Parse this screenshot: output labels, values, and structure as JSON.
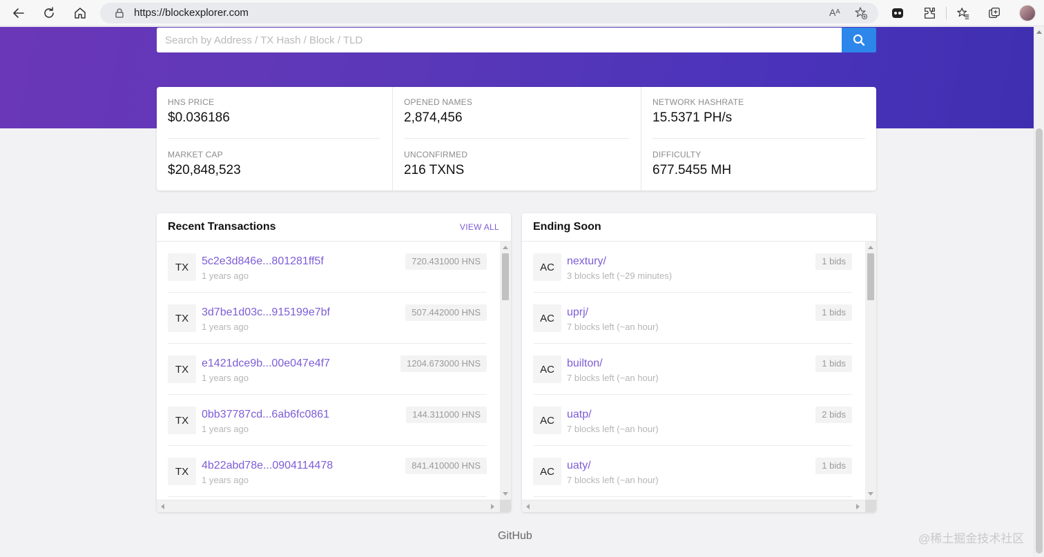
{
  "browser": {
    "url": "https://blockexplorer.com",
    "reader_label": "Aᴬ"
  },
  "search": {
    "placeholder": "Search by Address / TX Hash / Block / TLD"
  },
  "stats": {
    "hns_price": {
      "label": "HNS PRICE",
      "value": "$0.036186"
    },
    "market_cap": {
      "label": "MARKET CAP",
      "value": "$20,848,523"
    },
    "opened_names": {
      "label": "OPENED NAMES",
      "value": "2,874,456"
    },
    "unconfirmed": {
      "label": "UNCONFIRMED",
      "value": "216 TXNS"
    },
    "network_hashrate": {
      "label": "NETWORK HASHRATE",
      "value": "15.5371 PH/s"
    },
    "difficulty": {
      "label": "DIFFICULTY",
      "value": "677.5455 MH"
    }
  },
  "recent_transactions": {
    "title": "Recent Transactions",
    "view_all": "VIEW ALL",
    "items": [
      {
        "badge": "TX",
        "hash": "5c2e3d846e...801281ff5f",
        "time": "1 years ago",
        "amount": "720.431000 HNS"
      },
      {
        "badge": "TX",
        "hash": "3d7be1d03c...915199e7bf",
        "time": "1 years ago",
        "amount": "507.442000 HNS"
      },
      {
        "badge": "TX",
        "hash": "e1421dce9b...00e047e4f7",
        "time": "1 years ago",
        "amount": "1204.673000 HNS"
      },
      {
        "badge": "TX",
        "hash": "0bb37787cd...6ab6fc0861",
        "time": "1 years ago",
        "amount": "144.311000 HNS"
      },
      {
        "badge": "TX",
        "hash": "4b22abd78e...0904114478",
        "time": "1 years ago",
        "amount": "841.410000 HNS"
      }
    ]
  },
  "ending_soon": {
    "title": "Ending Soon",
    "items": [
      {
        "badge": "AC",
        "name": "nextury/",
        "detail": "3 blocks left (~29 minutes)",
        "bids": "1 bids"
      },
      {
        "badge": "AC",
        "name": "uprj/",
        "detail": "7 blocks left (~an hour)",
        "bids": "1 bids"
      },
      {
        "badge": "AC",
        "name": "builton/",
        "detail": "7 blocks left (~an hour)",
        "bids": "1 bids"
      },
      {
        "badge": "AC",
        "name": "uatp/",
        "detail": "7 blocks left (~an hour)",
        "bids": "2 bids"
      },
      {
        "badge": "AC",
        "name": "uaty/",
        "detail": "7 blocks left (~an hour)",
        "bids": "1 bids"
      }
    ]
  },
  "footer": {
    "github": "GitHub",
    "watermark": "@稀土掘金技术社区"
  },
  "colors": {
    "accent": "#7d5cd6",
    "search_button": "#2d86ea",
    "hero_start": "#6a37b8",
    "hero_end": "#3f2fb0"
  },
  "icons": {
    "back": "arrow-left-icon",
    "refresh": "refresh-icon",
    "home": "home-icon",
    "lock": "lock-icon",
    "search": "search-icon"
  }
}
